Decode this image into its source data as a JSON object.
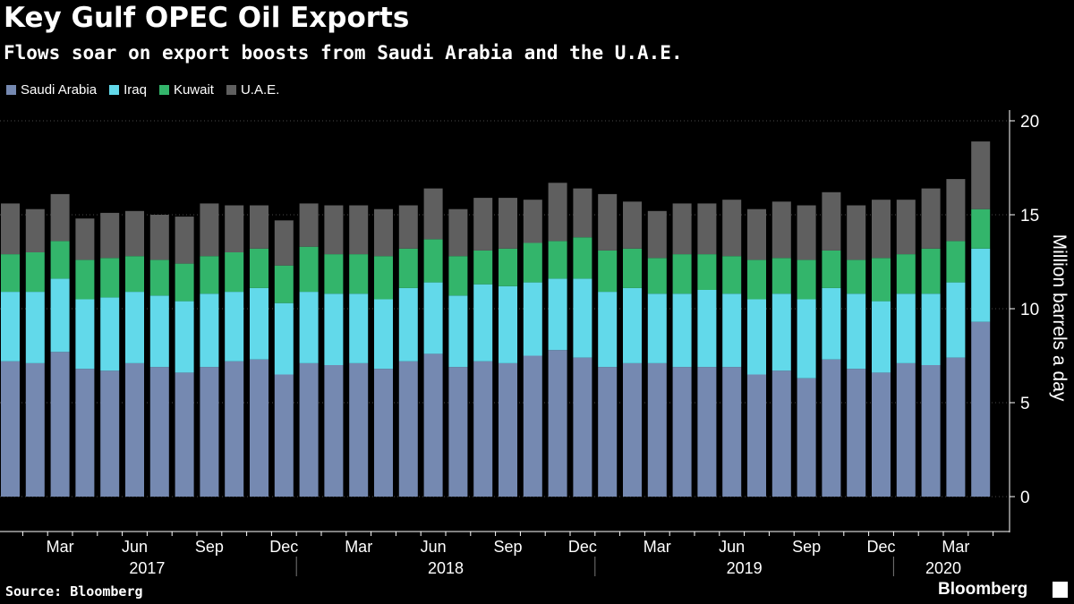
{
  "header": {
    "title": "Key Gulf OPEC Oil Exports",
    "subtitle": "Flows soar on export boosts from Saudi Arabia and the U.A.E."
  },
  "legend": [
    {
      "label": "Saudi Arabia",
      "color": "#7589b1"
    },
    {
      "label": "Iraq",
      "color": "#62d9ea"
    },
    {
      "label": "Kuwait",
      "color": "#33b56b"
    },
    {
      "label": "U.A.E.",
      "color": "#5f5f5f"
    }
  ],
  "footer": {
    "source": "Source: Bloomberg",
    "brand": "Bloomberg"
  },
  "chart_data": {
    "type": "bar",
    "stacked": true,
    "ylabel": "Million barrels a day",
    "ylim": [
      0,
      20
    ],
    "yticks": [
      0,
      5,
      10,
      15,
      20
    ],
    "y_axis_position": "right",
    "grid": true,
    "legend_position": "top-left",
    "categories": [
      "2017-01",
      "2017-02",
      "2017-03",
      "2017-04",
      "2017-05",
      "2017-06",
      "2017-07",
      "2017-08",
      "2017-09",
      "2017-10",
      "2017-11",
      "2017-12",
      "2018-01",
      "2018-02",
      "2018-03",
      "2018-04",
      "2018-05",
      "2018-06",
      "2018-07",
      "2018-08",
      "2018-09",
      "2018-10",
      "2018-11",
      "2018-12",
      "2019-01",
      "2019-02",
      "2019-03",
      "2019-04",
      "2019-05",
      "2019-06",
      "2019-07",
      "2019-08",
      "2019-09",
      "2019-10",
      "2019-11",
      "2019-12",
      "2020-01",
      "2020-02",
      "2020-03",
      "2020-04"
    ],
    "x_tick_labels": [
      {
        "label": "Mar",
        "index": 2
      },
      {
        "label": "Jun",
        "index": 5
      },
      {
        "label": "Sep",
        "index": 8
      },
      {
        "label": "Dec",
        "index": 11
      },
      {
        "label": "Mar",
        "index": 14
      },
      {
        "label": "Jun",
        "index": 17
      },
      {
        "label": "Sep",
        "index": 20
      },
      {
        "label": "Dec",
        "index": 23
      },
      {
        "label": "Mar",
        "index": 26
      },
      {
        "label": "Jun",
        "index": 29
      },
      {
        "label": "Sep",
        "index": 32
      },
      {
        "label": "Dec",
        "index": 35
      },
      {
        "label": "Mar",
        "index": 38
      }
    ],
    "year_labels": [
      {
        "label": "2017",
        "first": 0,
        "last": 11
      },
      {
        "label": "2018",
        "first": 12,
        "last": 23
      },
      {
        "label": "2019",
        "first": 24,
        "last": 35
      },
      {
        "label": "2020",
        "first": 36,
        "last": 39
      }
    ],
    "series": [
      {
        "name": "Saudi Arabia",
        "color": "#7589b1",
        "values": [
          7.2,
          7.1,
          7.7,
          6.8,
          6.7,
          7.1,
          6.9,
          6.6,
          6.9,
          7.2,
          7.3,
          6.5,
          7.1,
          7.0,
          7.1,
          6.8,
          7.2,
          7.6,
          6.9,
          7.2,
          7.1,
          7.5,
          7.8,
          7.4,
          6.9,
          7.1,
          7.1,
          6.9,
          6.9,
          6.9,
          6.5,
          6.7,
          6.3,
          7.3,
          6.8,
          6.6,
          7.1,
          7.0,
          7.4,
          9.3
        ]
      },
      {
        "name": "Iraq",
        "color": "#62d9ea",
        "values": [
          3.7,
          3.8,
          3.9,
          3.7,
          3.9,
          3.8,
          3.8,
          3.8,
          3.9,
          3.7,
          3.8,
          3.8,
          3.8,
          3.8,
          3.7,
          3.7,
          3.9,
          3.8,
          3.8,
          4.1,
          4.1,
          3.9,
          3.8,
          4.2,
          4.0,
          4.0,
          3.7,
          3.9,
          4.1,
          3.9,
          4.0,
          4.1,
          4.2,
          3.8,
          4.0,
          3.8,
          3.7,
          3.8,
          4.0,
          3.9
        ]
      },
      {
        "name": "Kuwait",
        "color": "#33b56b",
        "values": [
          2.0,
          2.1,
          2.0,
          2.1,
          2.1,
          1.9,
          1.9,
          2.0,
          2.0,
          2.1,
          2.1,
          2.0,
          2.4,
          2.1,
          2.1,
          2.3,
          2.1,
          2.3,
          2.1,
          1.8,
          2.0,
          2.1,
          2.0,
          2.2,
          2.2,
          2.1,
          1.9,
          2.1,
          1.9,
          2.0,
          2.1,
          1.9,
          2.1,
          2.0,
          1.8,
          2.3,
          2.1,
          2.4,
          2.2,
          2.1
        ]
      },
      {
        "name": "U.A.E.",
        "color": "#5f5f5f",
        "values": [
          2.7,
          2.3,
          2.5,
          2.2,
          2.4,
          2.4,
          2.4,
          2.5,
          2.8,
          2.5,
          2.3,
          2.4,
          2.3,
          2.6,
          2.6,
          2.5,
          2.3,
          2.7,
          2.5,
          2.8,
          2.7,
          2.3,
          3.1,
          2.6,
          3.0,
          2.5,
          2.5,
          2.7,
          2.7,
          3.0,
          2.7,
          3.0,
          2.9,
          3.1,
          2.9,
          3.1,
          2.9,
          3.2,
          3.3,
          3.6
        ]
      }
    ]
  }
}
